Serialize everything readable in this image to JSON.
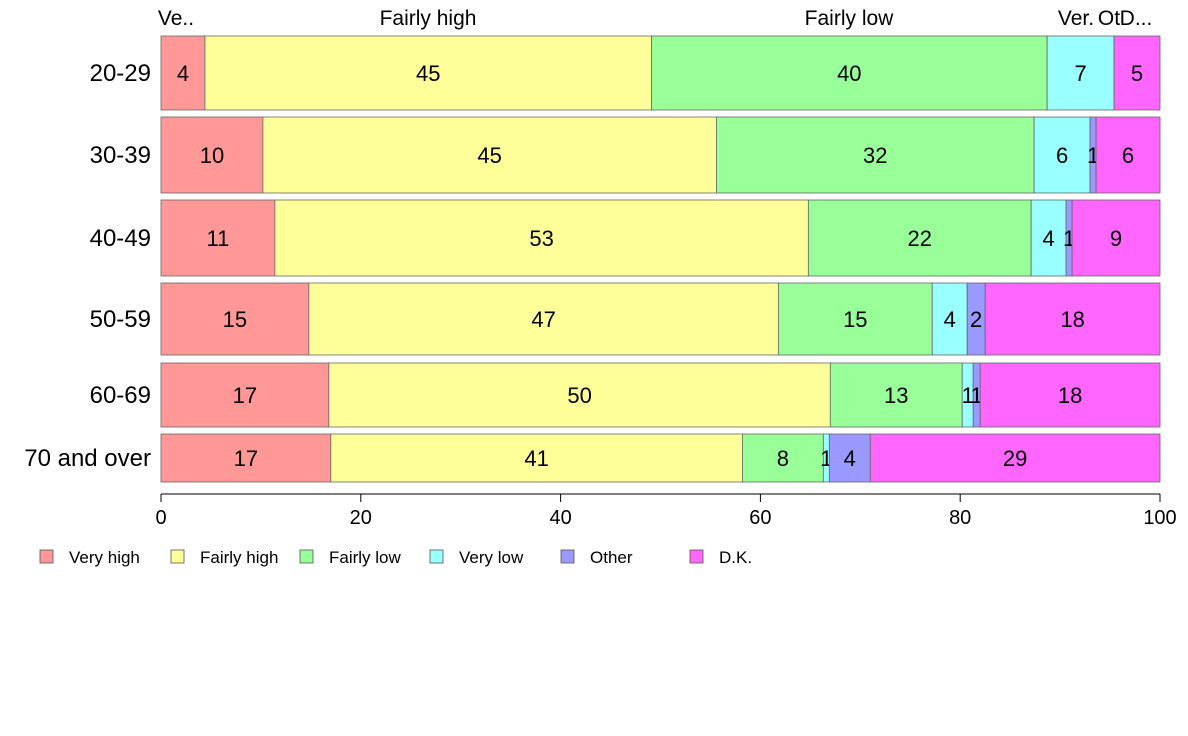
{
  "chart_data": {
    "type": "bar",
    "orientation": "horizontal",
    "stacked": true,
    "title": "",
    "xlabel": "",
    "ylabel": "",
    "xlim": [
      0,
      100
    ],
    "x_ticks": [
      "0",
      "20",
      "40",
      "60",
      "80",
      "100"
    ],
    "grid": false,
    "legend_position": "bottom",
    "categories": [
      "20-29",
      "30-39",
      "40-49",
      "50-59",
      "60-69",
      "70 and over"
    ],
    "top_labels": [
      "Ve..",
      "Fairly high",
      "Fairly low",
      "Ver.",
      "Ot",
      "D..."
    ],
    "series": [
      {
        "name": "Very high",
        "color": "#ff9896",
        "values": [
          4.4,
          10.2,
          11.4,
          14.8,
          16.8,
          17.0
        ],
        "labels": [
          "4",
          "10",
          "11",
          "15",
          "17",
          "17"
        ]
      },
      {
        "name": "Fairly high",
        "color": "#ffff99",
        "values": [
          44.7,
          45.4,
          53.4,
          47.0,
          50.2,
          41.2
        ],
        "labels": [
          "45",
          "45",
          "53",
          "47",
          "50",
          "41"
        ]
      },
      {
        "name": "Fairly low",
        "color": "#99ff99",
        "values": [
          39.6,
          31.8,
          22.3,
          15.4,
          13.2,
          8.1
        ],
        "labels": [
          "40",
          "32",
          "22",
          "15",
          "13",
          "8"
        ]
      },
      {
        "name": "Very low",
        "color": "#99ffff",
        "values": [
          6.7,
          5.6,
          3.5,
          3.5,
          1.1,
          0.6
        ],
        "labels": [
          "7",
          "6",
          "4",
          "4",
          "1",
          "1"
        ]
      },
      {
        "name": "Other",
        "color": "#9999ff",
        "values": [
          0.0,
          0.6,
          0.6,
          1.8,
          0.7,
          4.1
        ],
        "labels": [
          "",
          "1",
          "1",
          "2",
          "1",
          "4"
        ]
      },
      {
        "name": "D.K.",
        "color": "#ff66ff",
        "values": [
          4.6,
          6.4,
          8.8,
          17.5,
          18.0,
          29.0
        ],
        "labels": [
          "5",
          "6",
          "9",
          "18",
          "18",
          "29"
        ]
      }
    ]
  }
}
